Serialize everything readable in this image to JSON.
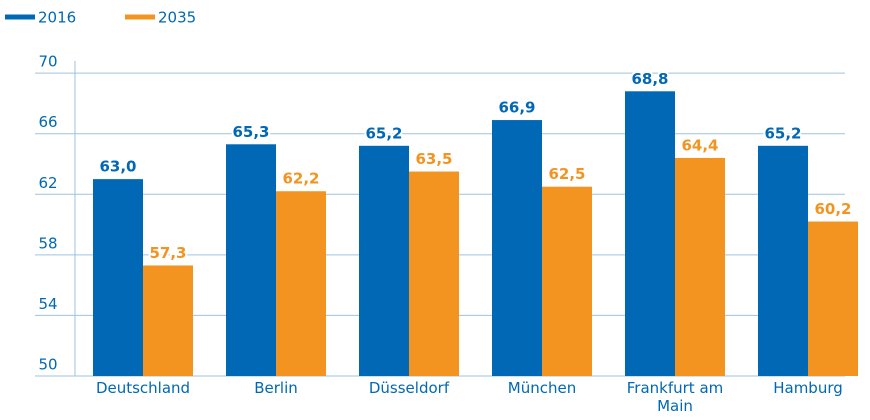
{
  "chart_data": {
    "type": "bar",
    "categories": [
      "Deutschland",
      "Berlin",
      "Düsseldorf",
      "München",
      "Frankfurt am Main",
      "Hamburg"
    ],
    "series": [
      {
        "name": "2016",
        "color": "#0068b4",
        "values": [
          63.0,
          65.3,
          65.2,
          66.9,
          68.8,
          65.2
        ],
        "value_labels": [
          "63,0",
          "65,3",
          "65,2",
          "66,9",
          "68,8",
          "65,2"
        ]
      },
      {
        "name": "2035",
        "color": "#f39420",
        "values": [
          57.3,
          62.2,
          63.5,
          62.5,
          64.4,
          60.2
        ],
        "value_labels": [
          "57,3",
          "62,2",
          "63,5",
          "62,5",
          "64,4",
          "60,2"
        ]
      }
    ],
    "ylim": [
      50,
      70.8
    ],
    "yticks": [
      50,
      54,
      58,
      62,
      66,
      70
    ],
    "grid": true,
    "legend": "top-left"
  }
}
